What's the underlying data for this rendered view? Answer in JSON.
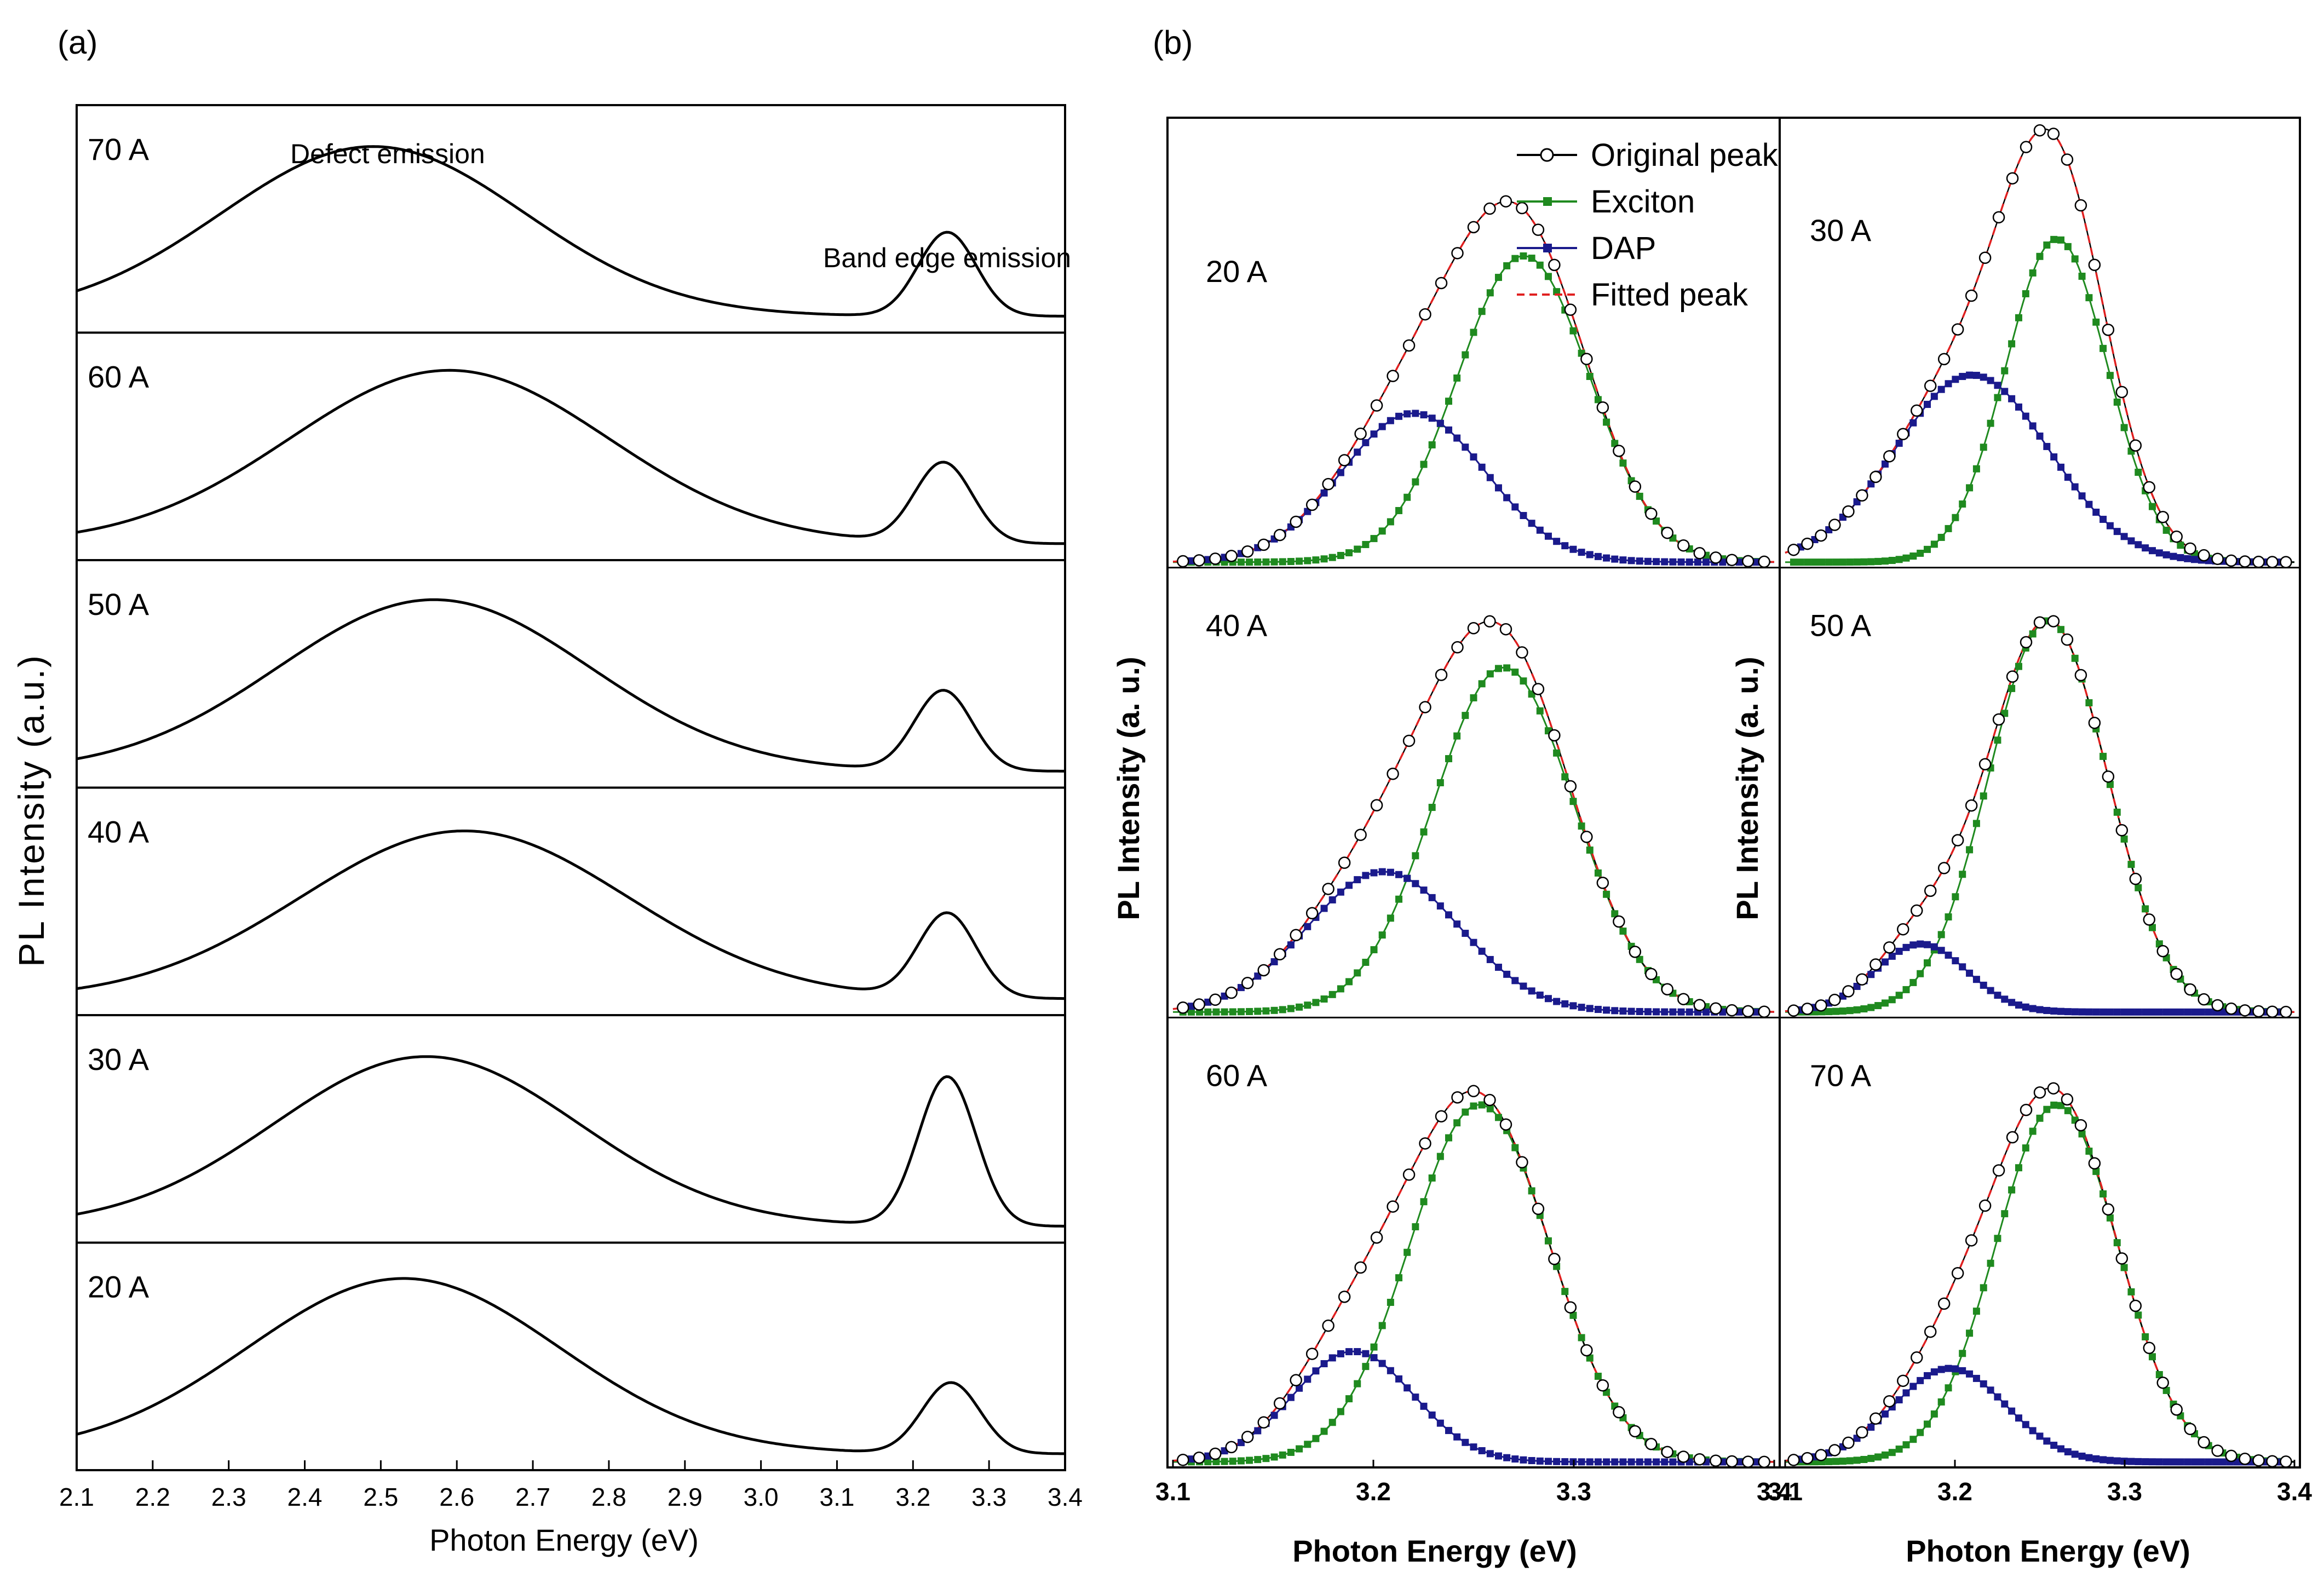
{
  "panel_a_label": "(a)",
  "panel_b_label": "(b)",
  "chart_data": [
    {
      "id": "panel_a",
      "type": "line",
      "title": "",
      "xlabel": "Photon Energy (eV)",
      "ylabel": "PL Intensity (a.u.)",
      "xlim": [
        2.1,
        3.4
      ],
      "xticks": [
        "2.1",
        "2.2",
        "2.3",
        "2.4",
        "2.5",
        "2.6",
        "2.7",
        "2.8",
        "2.9",
        "3.0",
        "3.1",
        "3.2",
        "3.3",
        "3.4"
      ],
      "annotations": [
        "Defect emission",
        "Band edge emission"
      ],
      "note": "Stacked spectra in normalized intensity units; each curve = defect Gaussian + band-edge Gaussian",
      "series": [
        {
          "name": "70 A",
          "defect": {
            "center": 2.49,
            "sigma": 0.2,
            "amp": 0.91
          },
          "band_edge": {
            "center": 3.245,
            "sigma": 0.038,
            "amp": 0.45
          },
          "baseline": 0.0
        },
        {
          "name": "60 A",
          "defect": {
            "center": 2.59,
            "sigma": 0.21,
            "amp": 0.93
          },
          "band_edge": {
            "center": 3.24,
            "sigma": 0.038,
            "amp": 0.43
          },
          "baseline": 0.0
        },
        {
          "name": "50 A",
          "defect": {
            "center": 2.57,
            "sigma": 0.205,
            "amp": 0.92
          },
          "band_edge": {
            "center": 3.24,
            "sigma": 0.038,
            "amp": 0.43
          },
          "baseline": 0.0
        },
        {
          "name": "40 A",
          "defect": {
            "center": 2.61,
            "sigma": 0.215,
            "amp": 0.9
          },
          "band_edge": {
            "center": 3.245,
            "sigma": 0.038,
            "amp": 0.45
          },
          "baseline": 0.0
        },
        {
          "name": "30 A",
          "defect": {
            "center": 2.56,
            "sigma": 0.2,
            "amp": 0.91
          },
          "band_edge": {
            "center": 3.245,
            "sigma": 0.038,
            "amp": 0.8
          },
          "baseline": 0.0
        },
        {
          "name": "20 A",
          "defect": {
            "center": 2.53,
            "sigma": 0.205,
            "amp": 0.94
          },
          "band_edge": {
            "center": 3.25,
            "sigma": 0.038,
            "amp": 0.38
          },
          "baseline": 0.0
        }
      ]
    },
    {
      "id": "panel_b",
      "type": "line",
      "title": "",
      "xlabel": "Photon Energy (eV)",
      "ylabel": "PL Intensity (a. u.)",
      "xlim": [
        3.1,
        3.4
      ],
      "xticks": [
        "3.1",
        "3.2",
        "3.3",
        "3.4"
      ],
      "legend": [
        "Original peak",
        "Exciton",
        "DAP",
        "Fitted peak"
      ],
      "colors": {
        "original": "#000000",
        "exciton": "#1f8a1f",
        "dap": "#1a1a8c",
        "fitted": "#e02020"
      },
      "note": "Normalized intensity; each spectrum fitted with Exciton and DAP Gaussians",
      "subplots": [
        {
          "name": "20 A",
          "exciton": {
            "center": 3.275,
            "sigma": 0.033,
            "amp": 0.72
          },
          "dap": {
            "center": 3.22,
            "sigma": 0.036,
            "amp": 0.35
          }
        },
        {
          "name": "30 A",
          "exciton": {
            "center": 3.26,
            "sigma": 0.03,
            "amp": 0.76
          },
          "dap": {
            "center": 3.21,
            "sigma": 0.045,
            "amp": 0.44
          }
        },
        {
          "name": "40 A",
          "exciton": {
            "center": 3.265,
            "sigma": 0.035,
            "amp": 0.81
          },
          "dap": {
            "center": 3.205,
            "sigma": 0.038,
            "amp": 0.33
          }
        },
        {
          "name": "50 A",
          "exciton": {
            "center": 3.255,
            "sigma": 0.035,
            "amp": 0.92
          },
          "dap": {
            "center": 3.18,
            "sigma": 0.027,
            "amp": 0.16
          }
        },
        {
          "name": "60 A",
          "exciton": {
            "center": 3.253,
            "sigma": 0.035,
            "amp": 0.84
          },
          "dap": {
            "center": 3.19,
            "sigma": 0.03,
            "amp": 0.26
          }
        },
        {
          "name": "70 A",
          "exciton": {
            "center": 3.26,
            "sigma": 0.036,
            "amp": 0.84
          },
          "dap": {
            "center": 3.197,
            "sigma": 0.033,
            "amp": 0.22
          }
        }
      ]
    }
  ]
}
